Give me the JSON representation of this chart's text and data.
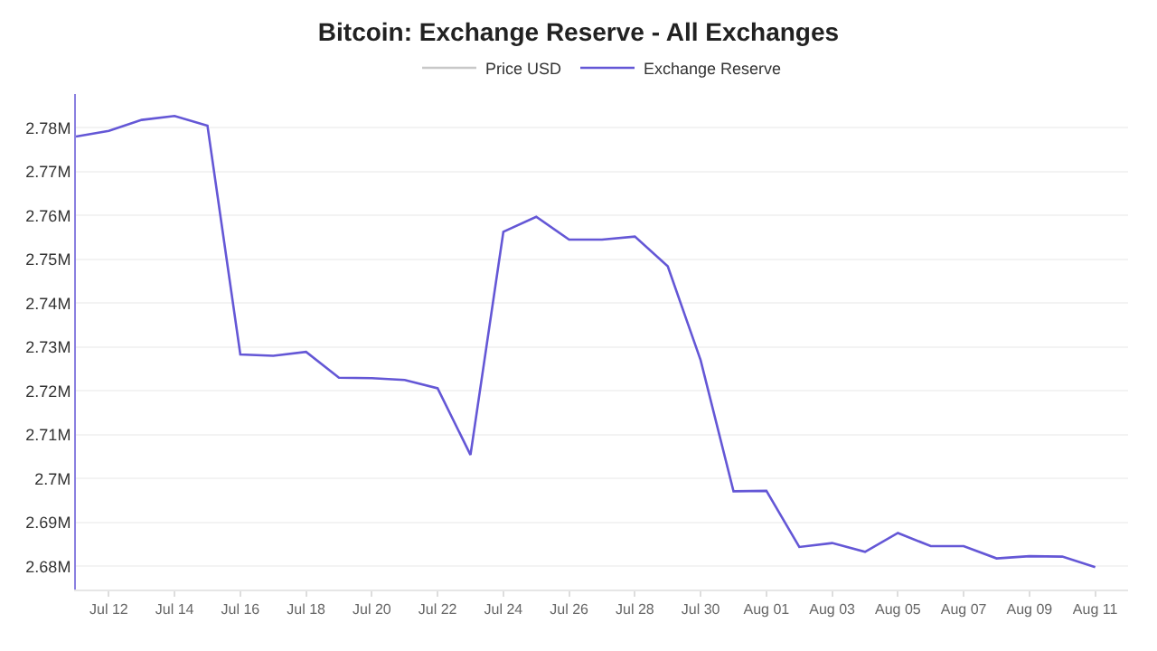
{
  "chart_data": {
    "type": "line",
    "title": "Bitcoin: Exchange Reserve - All Exchanges",
    "x": [
      "--07-11",
      "--07-12",
      "--07-13",
      "--07-14",
      "--07-15",
      "--07-16",
      "--07-17",
      "--07-18",
      "--07-19",
      "--07-20",
      "--07-21",
      "--07-22",
      "--07-23",
      "--07-24",
      "--07-25",
      "--07-26",
      "--07-27",
      "--07-28",
      "--07-29",
      "--07-30",
      "--07-31",
      "--08-01",
      "--08-02",
      "--08-03",
      "--08-04",
      "--08-05",
      "--08-06",
      "--08-07",
      "--08-08",
      "--08-09",
      "--08-10",
      "--08-11"
    ],
    "series": [
      {
        "name": "Price USD",
        "color": "#c8c8c8",
        "values": [
          null,
          null,
          null,
          null,
          null,
          null,
          null,
          null,
          null,
          null,
          null,
          null,
          null,
          null,
          null,
          null,
          null,
          null,
          null,
          null,
          null,
          null,
          null,
          null,
          null,
          null,
          null,
          null,
          null,
          null,
          null,
          null
        ]
      },
      {
        "name": "Exchange Reserve",
        "color": "#6457d6",
        "values": [
          2.778,
          2.7793,
          2.7818,
          2.7827,
          2.7805,
          2.7283,
          2.728,
          2.7289,
          2.723,
          2.7229,
          2.7225,
          2.7206,
          2.7054,
          2.7563,
          2.7597,
          2.7545,
          2.7545,
          2.7552,
          2.7484,
          2.727,
          2.6971,
          2.6972,
          2.6844,
          2.6853,
          2.6833,
          2.6876,
          2.6846,
          2.6846,
          2.6818,
          2.6823,
          2.6822,
          2.6798
        ]
      }
    ],
    "xlim": [
      "--07-11",
      "--08-12"
    ],
    "xticks": [
      {
        "value": "--07-12",
        "label": "Jul 12"
      },
      {
        "value": "--07-14",
        "label": "Jul 14"
      },
      {
        "value": "--07-16",
        "label": "Jul 16"
      },
      {
        "value": "--07-18",
        "label": "Jul 18"
      },
      {
        "value": "--07-20",
        "label": "Jul 20"
      },
      {
        "value": "--07-22",
        "label": "Jul 22"
      },
      {
        "value": "--07-24",
        "label": "Jul 24"
      },
      {
        "value": "--07-26",
        "label": "Jul 26"
      },
      {
        "value": "--07-28",
        "label": "Jul 28"
      },
      {
        "value": "--07-30",
        "label": "Jul 30"
      },
      {
        "value": "--08-01",
        "label": "Aug 01"
      },
      {
        "value": "--08-03",
        "label": "Aug 03"
      },
      {
        "value": "--08-05",
        "label": "Aug 05"
      },
      {
        "value": "--08-07",
        "label": "Aug 07"
      },
      {
        "value": "--08-09",
        "label": "Aug 09"
      },
      {
        "value": "--08-11",
        "label": "Aug 11"
      }
    ],
    "ylim": [
      2.6747,
      2.7877
    ],
    "yticks": [
      {
        "value": 2.68,
        "label": "2.68M"
      },
      {
        "value": 2.69,
        "label": "2.69M"
      },
      {
        "value": 2.7,
        "label": "2.7M"
      },
      {
        "value": 2.71,
        "label": "2.71M"
      },
      {
        "value": 2.72,
        "label": "2.72M"
      },
      {
        "value": 2.73,
        "label": "2.73M"
      },
      {
        "value": 2.74,
        "label": "2.74M"
      },
      {
        "value": 2.75,
        "label": "2.75M"
      },
      {
        "value": 2.76,
        "label": "2.76M"
      },
      {
        "value": 2.77,
        "label": "2.77M"
      },
      {
        "value": 2.78,
        "label": "2.78M"
      }
    ],
    "grid": "y",
    "legend": "top",
    "marker": "none",
    "line_style": "solid"
  }
}
